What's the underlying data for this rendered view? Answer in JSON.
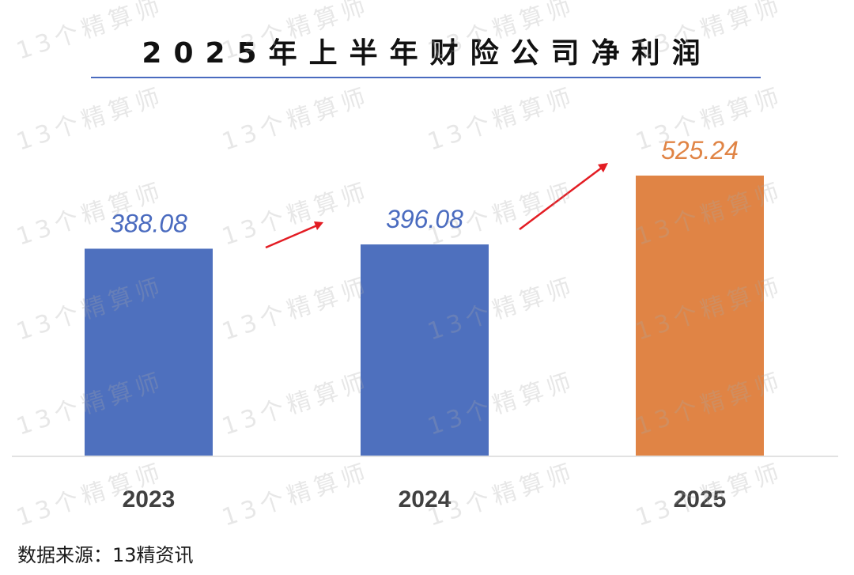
{
  "source_note": "数据来源：13精资讯",
  "watermark_text": "13个精算师",
  "colors": {
    "bar_default": "#4e70be",
    "bar_highlight": "#e08445",
    "label_default": "#4a6bbf",
    "label_highlight": "#e08445",
    "arrow": "#e31c23",
    "axis": "#d9d9d9"
  },
  "chart_data": {
    "type": "bar",
    "title": "2025年上半年财险公司净利润",
    "categories": [
      "2023",
      "2024",
      "2025"
    ],
    "values": [
      388.08,
      396.08,
      525.24
    ],
    "value_labels": [
      "388.08",
      "396.08",
      "525.24"
    ],
    "highlight_category": "2025",
    "xlabel": "",
    "ylabel": "",
    "ylim": [
      0,
      540
    ],
    "grid": false,
    "legend": "none"
  }
}
